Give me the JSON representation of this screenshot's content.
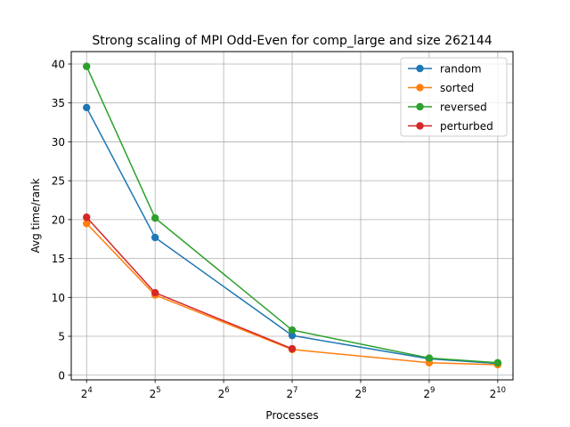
{
  "chart_data": {
    "type": "line",
    "title": "Strong scaling of MPI Odd-Even for comp_large and size 262144",
    "xlabel": "Processes",
    "ylabel": "Avg time/rank",
    "x_scale": "log2",
    "xticks": [
      {
        "value": 16,
        "base": "2",
        "exp": "4"
      },
      {
        "value": 32,
        "base": "2",
        "exp": "5"
      },
      {
        "value": 64,
        "base": "2",
        "exp": "6"
      },
      {
        "value": 128,
        "base": "2",
        "exp": "7"
      },
      {
        "value": 256,
        "base": "2",
        "exp": "8"
      },
      {
        "value": 512,
        "base": "2",
        "exp": "9"
      },
      {
        "value": 1024,
        "base": "2",
        "exp": "10"
      }
    ],
    "yticks": [
      "0",
      "5",
      "10",
      "15",
      "20",
      "25",
      "30",
      "35",
      "40"
    ],
    "xlim": [
      13.7,
      1195
    ],
    "ylim": [
      -0.6,
      41.6
    ],
    "grid": true,
    "legend_position": "top-right",
    "series": [
      {
        "name": "random",
        "color": "#1f77b4",
        "x": [
          16,
          32,
          128,
          512,
          1024
        ],
        "y": [
          34.4,
          17.7,
          5.1,
          2.1,
          1.5
        ]
      },
      {
        "name": "sorted",
        "color": "#ff7f0e",
        "x": [
          16,
          32,
          128,
          512,
          1024
        ],
        "y": [
          19.5,
          10.3,
          3.3,
          1.6,
          1.35
        ]
      },
      {
        "name": "reversed",
        "color": "#2ca02c",
        "x": [
          16,
          32,
          128,
          512,
          1024
        ],
        "y": [
          39.7,
          20.2,
          5.8,
          2.2,
          1.6
        ]
      },
      {
        "name": "perturbed",
        "color": "#d62728",
        "x": [
          16,
          32,
          128
        ],
        "y": [
          20.3,
          10.6,
          3.4
        ]
      }
    ]
  }
}
